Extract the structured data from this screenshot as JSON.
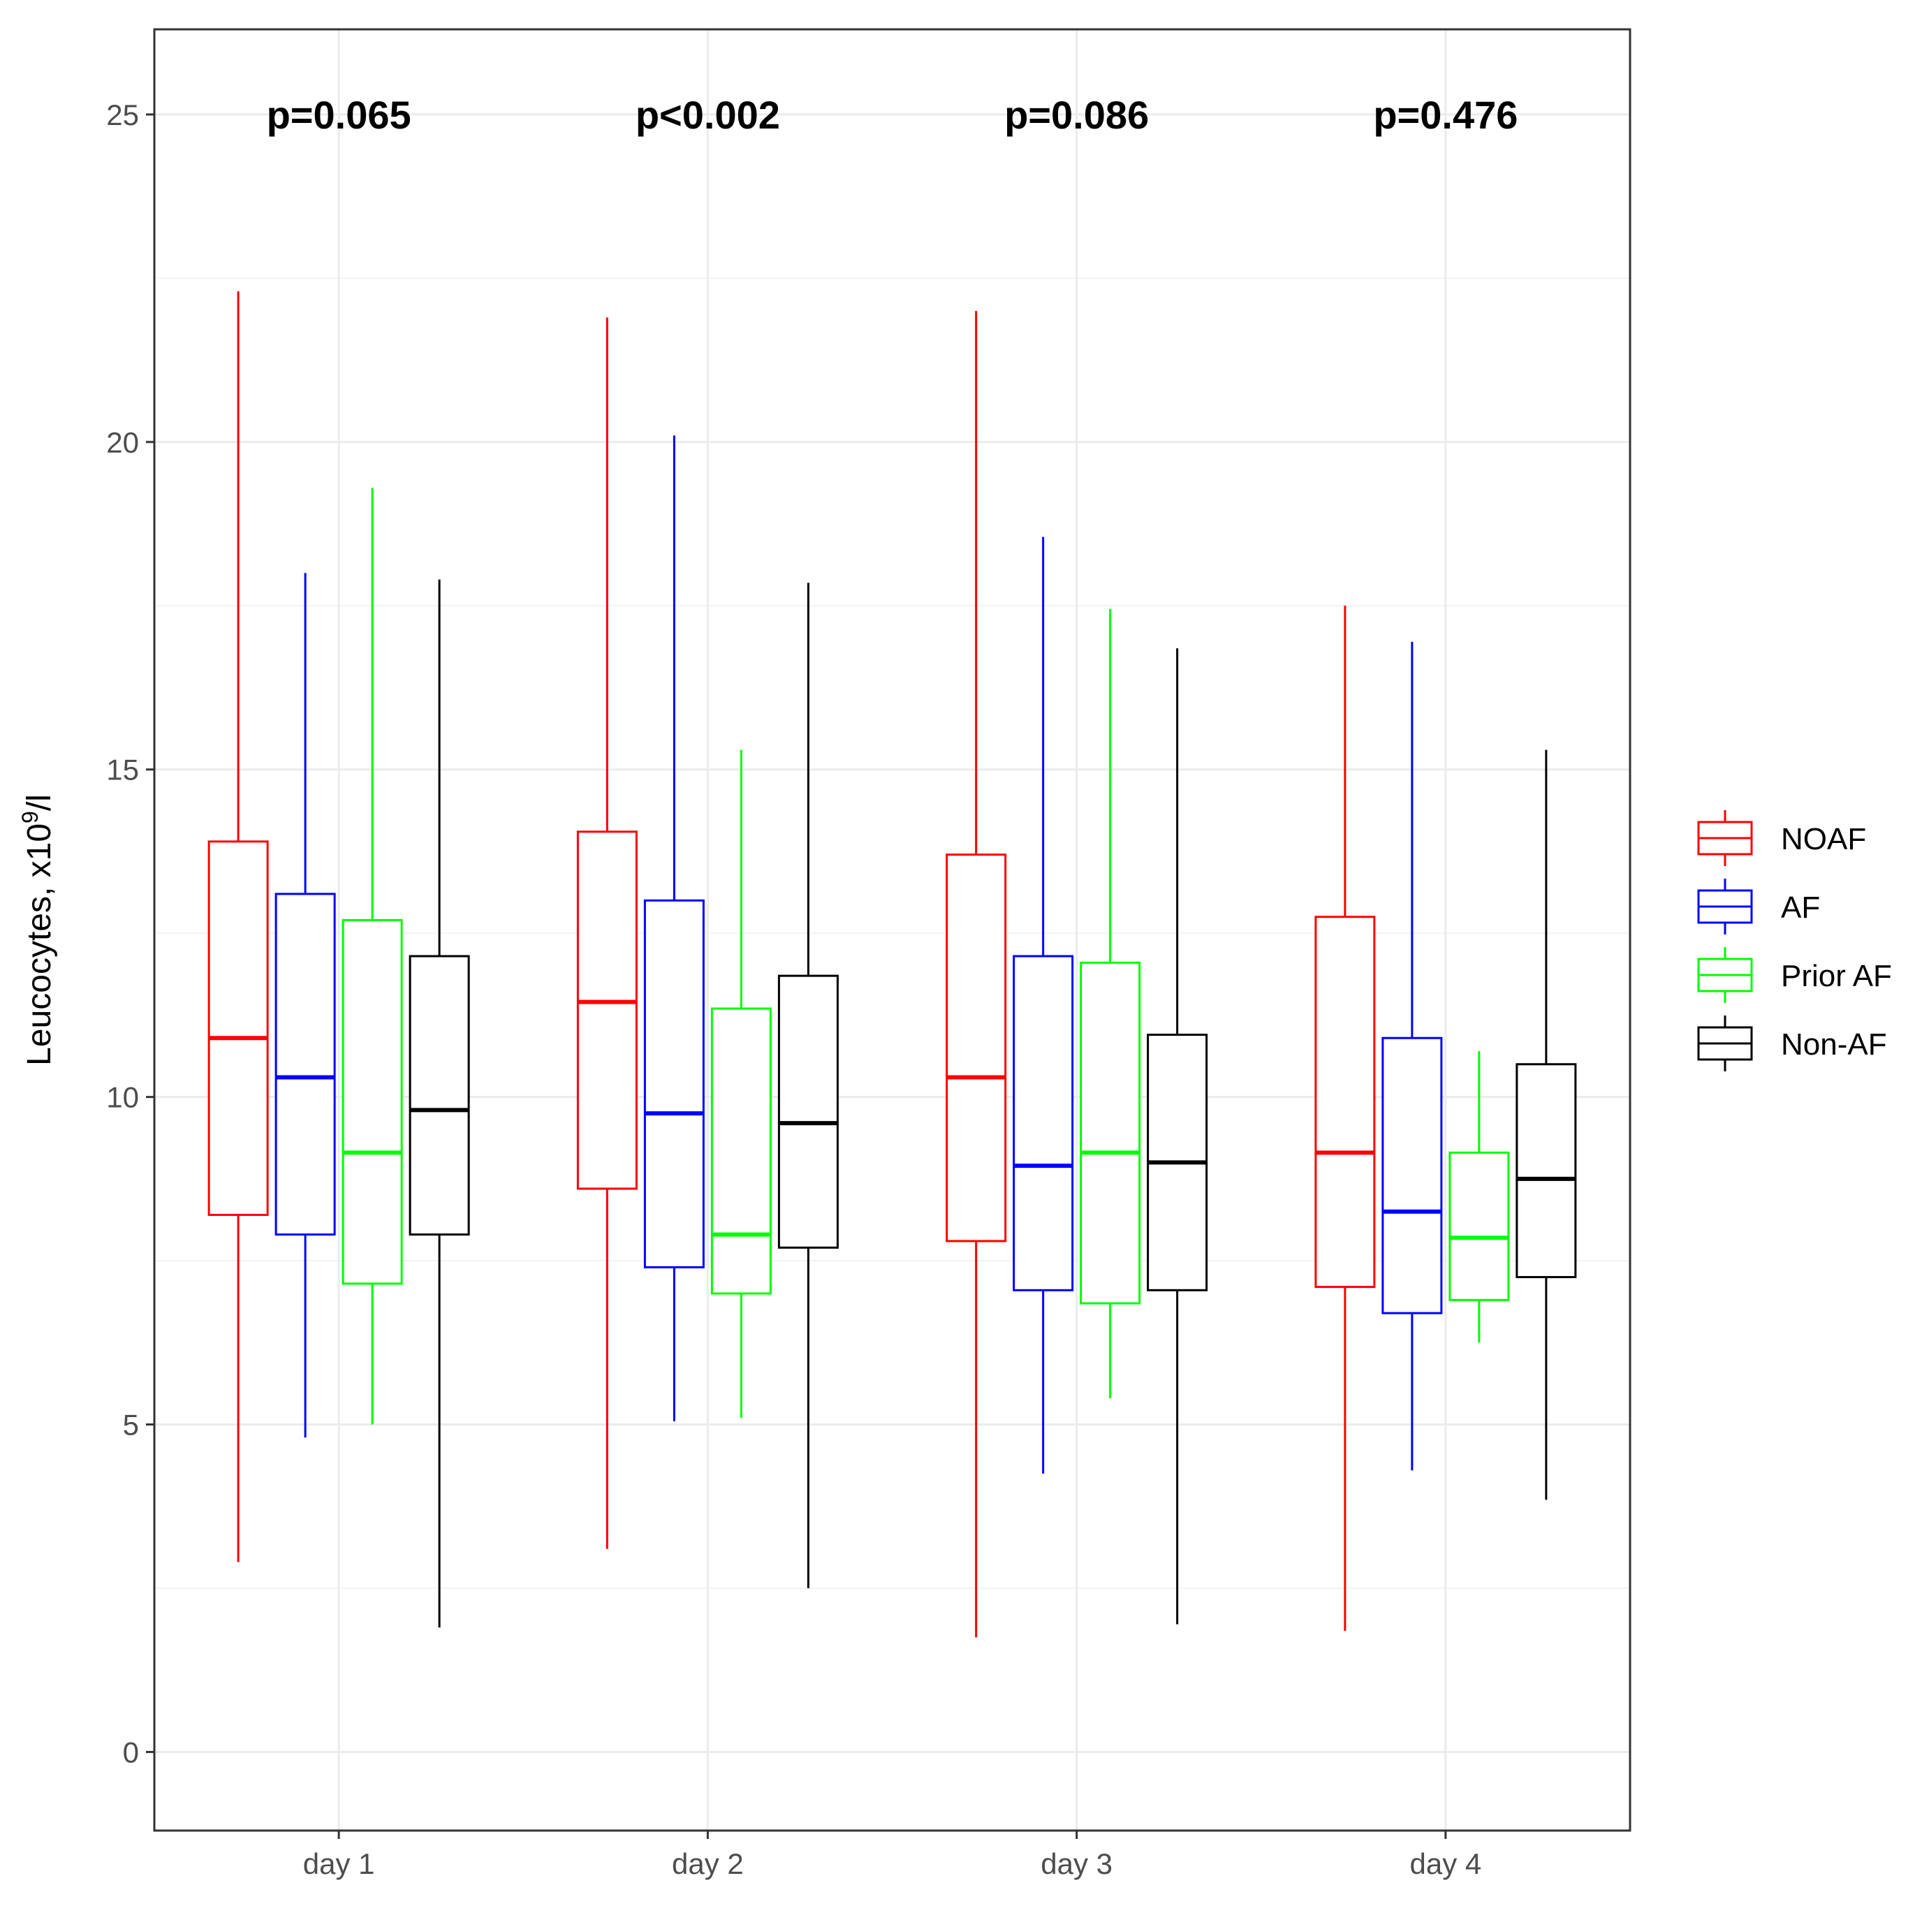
{
  "chart_data": {
    "type": "box",
    "title": "",
    "xlabel": "",
    "ylabel": "Leucocytes, x10",
    "ylabel_superscript": "9",
    "ylabel_suffix": "/l",
    "categories": [
      "day 1",
      "day 2",
      "day 3",
      "day 4"
    ],
    "ylim": [
      -1.2,
      26.3
    ],
    "yticks": [
      0,
      5,
      10,
      15,
      20,
      25
    ],
    "ytick_labels": [
      "0",
      "5",
      "10",
      "15",
      "20",
      "25"
    ],
    "grid": true,
    "legend_position": "right",
    "annotations": [
      "p=0.065",
      "p<0.002",
      "p=0.086",
      "p=0.476"
    ],
    "series": [
      {
        "name": "NOAF",
        "color": "#ff0000",
        "boxes": [
          {
            "min": 2.9,
            "q1": 8.2,
            "median": 10.9,
            "q3": 13.9,
            "max": 22.3
          },
          {
            "min": 3.1,
            "q1": 8.6,
            "median": 11.45,
            "q3": 14.05,
            "max": 21.9
          },
          {
            "min": 1.75,
            "q1": 7.8,
            "median": 10.3,
            "q3": 13.7,
            "max": 22.0
          },
          {
            "min": 1.85,
            "q1": 7.1,
            "median": 9.15,
            "q3": 12.75,
            "max": 17.5
          }
        ]
      },
      {
        "name": "AF",
        "color": "#0000ff",
        "boxes": [
          {
            "min": 4.8,
            "q1": 7.9,
            "median": 10.3,
            "q3": 13.1,
            "max": 18.0
          },
          {
            "min": 5.05,
            "q1": 7.4,
            "median": 9.75,
            "q3": 13.0,
            "max": 20.1
          },
          {
            "min": 4.25,
            "q1": 7.05,
            "median": 8.95,
            "q3": 12.15,
            "max": 18.55
          },
          {
            "min": 4.3,
            "q1": 6.7,
            "median": 8.25,
            "q3": 10.9,
            "max": 16.95
          }
        ]
      },
      {
        "name": "Prior AF",
        "color": "#00ff00",
        "boxes": [
          {
            "min": 5.0,
            "q1": 7.15,
            "median": 9.15,
            "q3": 12.7,
            "max": 19.3
          },
          {
            "min": 5.1,
            "q1": 7.0,
            "median": 7.9,
            "q3": 11.35,
            "max": 15.3
          },
          {
            "min": 5.4,
            "q1": 6.85,
            "median": 9.15,
            "q3": 12.05,
            "max": 17.45
          },
          {
            "min": 6.25,
            "q1": 6.9,
            "median": 7.85,
            "q3": 9.15,
            "max": 10.7
          }
        ]
      },
      {
        "name": "Non-AF",
        "color": "#000000",
        "boxes": [
          {
            "min": 1.9,
            "q1": 7.9,
            "median": 9.8,
            "q3": 12.15,
            "max": 17.9
          },
          {
            "min": 2.5,
            "q1": 7.7,
            "median": 9.6,
            "q3": 11.85,
            "max": 17.85
          },
          {
            "min": 1.95,
            "q1": 7.05,
            "median": 9.0,
            "q3": 10.95,
            "max": 16.85
          },
          {
            "min": 3.85,
            "q1": 7.25,
            "median": 8.75,
            "q3": 10.5,
            "max": 15.3
          }
        ]
      }
    ]
  }
}
